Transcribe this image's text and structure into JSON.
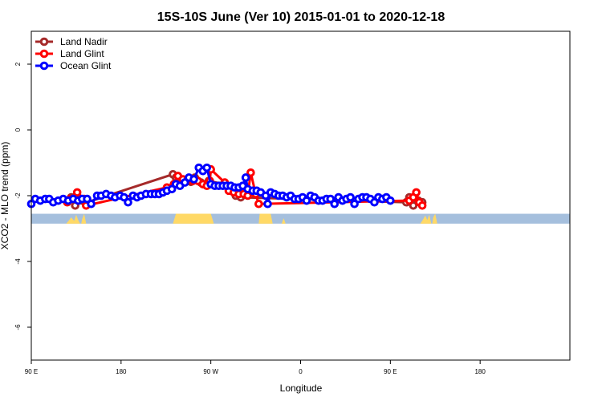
{
  "chart_data": {
    "type": "line",
    "title": "15S-10S June (Ver 10)   2015-01-01 to 2020-12-18",
    "xlabel": "Longitude",
    "ylabel": "XCO2 - MLO trend (ppm)",
    "xlim": [
      -180,
      360
    ],
    "ylim": [
      -7,
      3
    ],
    "x_ticks": [
      {
        "value": -180,
        "label": "90 E"
      },
      {
        "value": -90,
        "label": "180"
      },
      {
        "value": 0,
        "label": "90 W"
      },
      {
        "value": 90,
        "label": "0"
      },
      {
        "value": 180,
        "label": "90 E"
      },
      {
        "value": 270,
        "label": "180"
      }
    ],
    "y_ticks": [
      {
        "value": 2,
        "label": "2"
      },
      {
        "value": 0,
        "label": "0"
      },
      {
        "value": -2,
        "label": "-2"
      },
      {
        "value": -4,
        "label": "-4"
      },
      {
        "value": -6,
        "label": "-6"
      }
    ],
    "legend_position": "top-left",
    "grid": false,
    "land_strip": {
      "y_top": -2.55,
      "y_bottom": -2.85,
      "ocean_color": "#a5bfdd",
      "land_color": "#ffd966"
    },
    "series": [
      {
        "name": "Land Nadir",
        "color": "#a52a2a",
        "points": [
          [
            -144,
            -2.15
          ],
          [
            -140,
            -2.05
          ],
          [
            -136,
            -2.3
          ],
          [
            -129,
            -2.15
          ],
          [
            -124,
            -2.2
          ],
          [
            -38,
            -1.35
          ],
          [
            -35,
            -1.45
          ],
          [
            -30,
            -1.5
          ],
          [
            -25,
            -1.55
          ],
          [
            -20,
            -1.58
          ],
          [
            -16,
            -1.45
          ],
          [
            -10,
            -1.6
          ],
          [
            -5,
            -1.65
          ],
          [
            -2,
            -1.55
          ],
          [
            13,
            -1.65
          ],
          [
            25,
            -2.0
          ],
          [
            30,
            -2.05
          ],
          [
            196,
            -2.2
          ],
          [
            199,
            -2.05
          ],
          [
            203,
            -2.3
          ],
          [
            208,
            -2.15
          ],
          [
            212,
            -2.2
          ]
        ]
      },
      {
        "name": "Land Glint",
        "color": "#ff0000",
        "points": [
          [
            -144,
            -2.2
          ],
          [
            -141,
            -2.1
          ],
          [
            -134,
            -1.9
          ],
          [
            -127,
            -2.1
          ],
          [
            -125,
            -2.3
          ],
          [
            -44,
            -1.75
          ],
          [
            -37,
            -1.65
          ],
          [
            -33,
            -1.4
          ],
          [
            -28,
            -1.5
          ],
          [
            -23,
            -1.5
          ],
          [
            -18,
            -1.55
          ],
          [
            -13,
            -1.55
          ],
          [
            -8,
            -1.65
          ],
          [
            -4,
            -1.7
          ],
          [
            -1,
            -1.55
          ],
          [
            0,
            -1.2
          ],
          [
            14,
            -1.6
          ],
          [
            18,
            -1.85
          ],
          [
            23,
            -1.9
          ],
          [
            28,
            -1.95
          ],
          [
            33,
            -1.95
          ],
          [
            37,
            -2.0
          ],
          [
            40,
            -1.3
          ],
          [
            45,
            -1.95
          ],
          [
            48,
            -2.25
          ],
          [
            199,
            -2.15
          ],
          [
            203,
            -2.05
          ],
          [
            206,
            -1.9
          ],
          [
            209,
            -2.2
          ],
          [
            212,
            -2.3
          ]
        ]
      },
      {
        "name": "Ocean Glint",
        "color": "#0000ff",
        "points": [
          [
            -180,
            -2.25
          ],
          [
            -176,
            -2.1
          ],
          [
            -171,
            -2.15
          ],
          [
            -166,
            -2.1
          ],
          [
            -162,
            -2.1
          ],
          [
            -158,
            -2.2
          ],
          [
            -153,
            -2.15
          ],
          [
            -148,
            -2.1
          ],
          [
            -143,
            -2.15
          ],
          [
            -138,
            -2.1
          ],
          [
            -133,
            -2.15
          ],
          [
            -129,
            -2.1
          ],
          [
            -124,
            -2.1
          ],
          [
            -120,
            -2.25
          ],
          [
            -114,
            -2.0
          ],
          [
            -110,
            -2.0
          ],
          [
            -105,
            -1.95
          ],
          [
            -100,
            -2.0
          ],
          [
            -96,
            -2.05
          ],
          [
            -91,
            -2.0
          ],
          [
            -87,
            -2.05
          ],
          [
            -83,
            -2.2
          ],
          [
            -78,
            -2.0
          ],
          [
            -74,
            -2.05
          ],
          [
            -70,
            -2.0
          ],
          [
            -65,
            -1.95
          ],
          [
            -60,
            -1.95
          ],
          [
            -56,
            -1.95
          ],
          [
            -52,
            -1.95
          ],
          [
            -48,
            -1.9
          ],
          [
            -44,
            -1.85
          ],
          [
            -39,
            -1.8
          ],
          [
            -35,
            -1.65
          ],
          [
            -31,
            -1.7
          ],
          [
            -26,
            -1.6
          ],
          [
            -22,
            -1.45
          ],
          [
            -17,
            -1.5
          ],
          [
            -12,
            -1.15
          ],
          [
            -8,
            -1.25
          ],
          [
            -4,
            -1.15
          ],
          [
            0,
            -1.65
          ],
          [
            4,
            -1.7
          ],
          [
            8,
            -1.7
          ],
          [
            12,
            -1.7
          ],
          [
            16,
            -1.7
          ],
          [
            20,
            -1.7
          ],
          [
            24,
            -1.75
          ],
          [
            28,
            -1.75
          ],
          [
            32,
            -1.7
          ],
          [
            35,
            -1.45
          ],
          [
            37,
            -1.8
          ],
          [
            42,
            -1.85
          ],
          [
            46,
            -1.85
          ],
          [
            50,
            -1.9
          ],
          [
            55,
            -2.0
          ],
          [
            57,
            -2.25
          ],
          [
            60,
            -1.9
          ],
          [
            64,
            -1.95
          ],
          [
            68,
            -2.0
          ],
          [
            72,
            -2.0
          ],
          [
            76,
            -2.05
          ],
          [
            80,
            -2.0
          ],
          [
            84,
            -2.1
          ],
          [
            88,
            -2.1
          ],
          [
            92,
            -2.05
          ],
          [
            96,
            -2.15
          ],
          [
            100,
            -2.0
          ],
          [
            104,
            -2.05
          ],
          [
            108,
            -2.15
          ],
          [
            112,
            -2.15
          ],
          [
            116,
            -2.1
          ],
          [
            120,
            -2.1
          ],
          [
            124,
            -2.25
          ],
          [
            128,
            -2.05
          ],
          [
            132,
            -2.15
          ],
          [
            136,
            -2.1
          ],
          [
            140,
            -2.05
          ],
          [
            144,
            -2.25
          ],
          [
            148,
            -2.1
          ],
          [
            152,
            -2.05
          ],
          [
            156,
            -2.05
          ],
          [
            160,
            -2.1
          ],
          [
            164,
            -2.2
          ],
          [
            168,
            -2.05
          ],
          [
            172,
            -2.1
          ],
          [
            176,
            -2.05
          ],
          [
            180,
            -2.15
          ]
        ]
      }
    ]
  }
}
